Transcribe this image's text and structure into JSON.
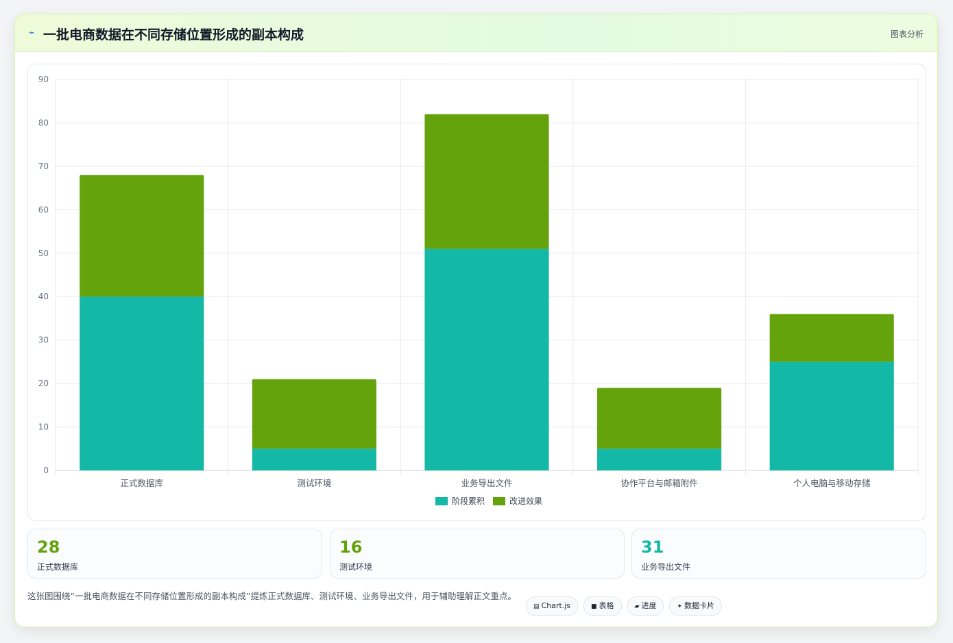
{
  "header": {
    "icon": "bolt-icon",
    "title": "一批电商数据在不同存储位置形成的副本构成",
    "tag": "图表分析"
  },
  "chart_data": {
    "type": "bar",
    "stacked": true,
    "categories": [
      "正式数据库",
      "测试环境",
      "业务导出文件",
      "协作平台与邮箱附件",
      "个人电脑与移动存储"
    ],
    "series": [
      {
        "name": "阶段累积",
        "color": "#14b8a6",
        "values": [
          40,
          5,
          51,
          5,
          25
        ]
      },
      {
        "name": "改进效果",
        "color": "#65a30d",
        "values": [
          28,
          16,
          31,
          14,
          11
        ]
      }
    ],
    "ylim": [
      0,
      90
    ],
    "yticks": [
      0,
      10,
      20,
      30,
      40,
      50,
      60,
      70,
      80,
      90
    ],
    "grid": true,
    "legend": "bottom"
  },
  "stats": [
    {
      "value": "28",
      "label": "正式数据库"
    },
    {
      "value": "16",
      "label": "测试环境"
    },
    {
      "value": "31",
      "label": "业务导出文件"
    }
  ],
  "footer": {
    "text": "这张图围绕“一批电商数据在不同存储位置形成的副本构成”提炼正式数据库、测试环境、业务导出文件，用于辅助理解正文重点。"
  },
  "chips": [
    {
      "icon": "chart-icon",
      "glyph": "▤",
      "label": "Chart.js"
    },
    {
      "icon": "table-icon",
      "glyph": "■",
      "label": "表格"
    },
    {
      "icon": "progress-icon",
      "glyph": "▰",
      "label": "进度"
    },
    {
      "icon": "card-icon",
      "glyph": "✦",
      "label": "数据卡片"
    }
  ]
}
